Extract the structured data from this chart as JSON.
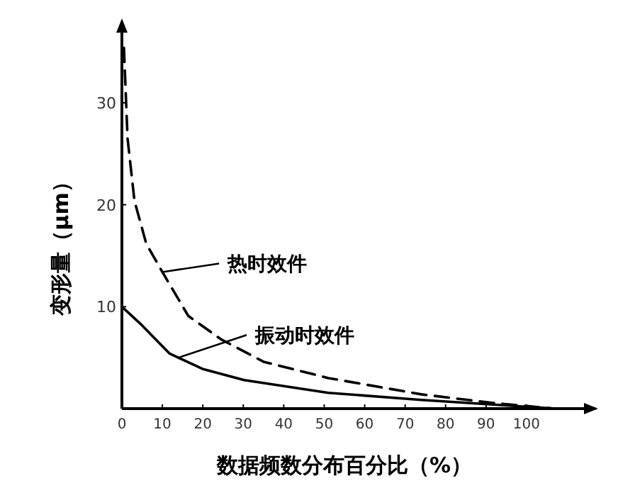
{
  "chart_data": {
    "type": "line",
    "xlabel": "数据频数分布百分比（%）",
    "ylabel": "变形量（μm）",
    "xlim": [
      0,
      117
    ],
    "ylim": [
      0,
      38
    ],
    "xticks": [
      0,
      10,
      20,
      30,
      40,
      50,
      60,
      70,
      80,
      90,
      100
    ],
    "yticks": [
      10,
      20,
      30
    ],
    "series": [
      {
        "color": "#000000",
        "line_style": "solid",
        "x": [
          0,
          4.9,
          11.8,
          19.9,
          30.2,
          51,
          74,
          91.7,
          107
        ],
        "values": [
          10,
          8.2,
          5.4,
          3.9,
          2.8,
          1.55,
          0.85,
          0.4,
          0
        ]
      },
      {
        "color": "#000000",
        "line_style": "dashed",
        "x": [
          0.5,
          1.4,
          3.1,
          6,
          10,
          16.4,
          24.5,
          35,
          51,
          74,
          91.7,
          107
        ],
        "values": [
          35.4,
          26.5,
          20.4,
          16.2,
          13.4,
          9.1,
          6.8,
          4.6,
          3,
          1.4,
          0.56,
          0
        ]
      }
    ],
    "annotations": [
      {
        "text": "热时效件",
        "x": 10,
        "y": 13.4
      },
      {
        "text": "振动时效件",
        "x": 14,
        "y": 5
      }
    ]
  }
}
